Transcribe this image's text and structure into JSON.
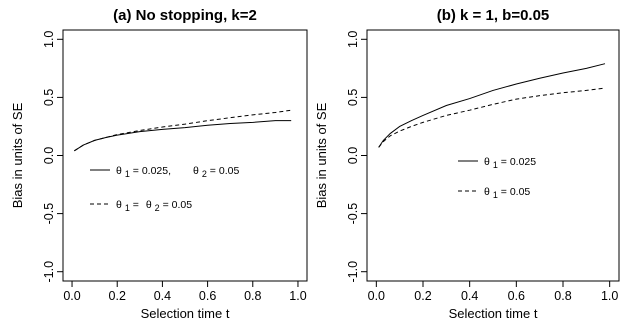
{
  "chart_data": [
    {
      "type": "line",
      "title": "(a) No stopping, k=2",
      "xlabel": "Selection time t",
      "ylabel": "Bias in units of SE",
      "xlim": [
        0,
        1
      ],
      "ylim": [
        -1,
        1
      ],
      "xticks": [
        "0.0",
        "0.2",
        "0.4",
        "0.6",
        "0.8",
        "1.0"
      ],
      "yticks": [
        "-1.0",
        "-0.5",
        "0.0",
        "0.5",
        "1.0"
      ],
      "grid": false,
      "legend": {
        "placement": "center-left",
        "entries": [
          {
            "style": "solid",
            "parts": [
              "θ",
              "1",
              " = 0.025,",
              "θ",
              "2",
              " = 0.05"
            ]
          },
          {
            "style": "dashed",
            "parts": [
              "θ",
              "1",
              " = ",
              "θ",
              "2",
              " = 0.05"
            ]
          }
        ]
      },
      "series": [
        {
          "style": "solid",
          "x": [
            0.01,
            0.05,
            0.1,
            0.15,
            0.2,
            0.3,
            0.4,
            0.5,
            0.6,
            0.7,
            0.8,
            0.9,
            0.97
          ],
          "y": [
            0.04,
            0.09,
            0.13,
            0.155,
            0.175,
            0.205,
            0.225,
            0.24,
            0.26,
            0.275,
            0.285,
            0.3,
            0.3
          ]
        },
        {
          "style": "dashed",
          "x": [
            0.01,
            0.05,
            0.1,
            0.15,
            0.2,
            0.3,
            0.4,
            0.5,
            0.6,
            0.7,
            0.8,
            0.9,
            0.97
          ],
          "y": [
            0.04,
            0.09,
            0.13,
            0.155,
            0.18,
            0.215,
            0.245,
            0.27,
            0.3,
            0.325,
            0.35,
            0.37,
            0.39
          ]
        }
      ]
    },
    {
      "type": "line",
      "title": "(b) k = 1, b=0.05",
      "xlabel": "Selection time t",
      "ylabel": "Bias in units of SE",
      "xlim": [
        0,
        1
      ],
      "ylim": [
        -1,
        1
      ],
      "xticks": [
        "0.0",
        "0.2",
        "0.4",
        "0.6",
        "0.8",
        "1.0"
      ],
      "yticks": [
        "-1.0",
        "-0.5",
        "0.0",
        "0.5",
        "1.0"
      ],
      "grid": false,
      "legend": {
        "placement": "center-left",
        "entries": [
          {
            "style": "solid",
            "parts": [
              "θ",
              "1",
              " = 0.025"
            ]
          },
          {
            "style": "dashed",
            "parts": [
              "θ",
              "1",
              " = 0.05"
            ]
          }
        ]
      },
      "series": [
        {
          "style": "solid",
          "x": [
            0.01,
            0.03,
            0.06,
            0.1,
            0.15,
            0.2,
            0.3,
            0.4,
            0.5,
            0.6,
            0.7,
            0.8,
            0.9,
            0.98
          ],
          "y": [
            0.07,
            0.13,
            0.19,
            0.25,
            0.3,
            0.345,
            0.43,
            0.49,
            0.56,
            0.615,
            0.665,
            0.71,
            0.75,
            0.79
          ]
        },
        {
          "style": "dashed",
          "x": [
            0.01,
            0.03,
            0.06,
            0.1,
            0.15,
            0.2,
            0.3,
            0.4,
            0.5,
            0.6,
            0.7,
            0.8,
            0.9,
            0.98
          ],
          "y": [
            0.07,
            0.12,
            0.17,
            0.21,
            0.25,
            0.285,
            0.345,
            0.39,
            0.44,
            0.485,
            0.515,
            0.54,
            0.56,
            0.58
          ]
        }
      ]
    }
  ]
}
